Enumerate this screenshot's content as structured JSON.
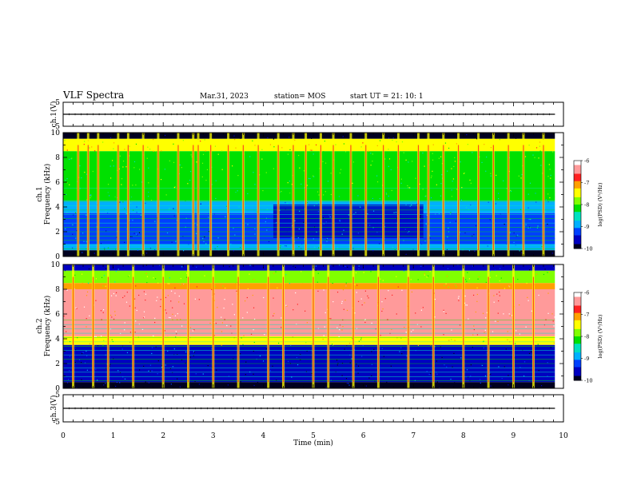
{
  "header": {
    "title": "VLF Spectra",
    "date": "Mar.31, 2023",
    "station": "station= MOS",
    "start": "start UT =   21: 10: 1"
  },
  "colorbar": {
    "label": "log(PSD) (V²/Hz)",
    "ticks": [
      "-6",
      "-7",
      "-8",
      "-9",
      "-10"
    ],
    "colors": [
      "#ffffff",
      "#ff9a9a",
      "#ff2020",
      "#ffa000",
      "#ffff00",
      "#80ff00",
      "#00e000",
      "#00e0c0",
      "#00b0ff",
      "#0040ff",
      "#0000c0",
      "#000020"
    ]
  },
  "chart_data": [
    {
      "type": "line",
      "panel": "ch1-waveform",
      "ylabel": "ch.1(V)",
      "ylim": [
        -5,
        5
      ],
      "ytick_labels": [
        "5",
        "-5"
      ],
      "x": [
        0,
        1,
        2,
        3,
        4,
        5,
        6,
        7,
        8,
        9,
        9.83
      ],
      "y": [
        0,
        0,
        0,
        0,
        0,
        0,
        0,
        0,
        0,
        0,
        0
      ]
    },
    {
      "type": "heatmap",
      "panel": "ch1-spectrogram",
      "ylabel": "ch.1 Frequency (kHz)",
      "ylim": [
        0,
        10
      ],
      "ytick_labels": [
        "0",
        "2",
        "4",
        "6",
        "8",
        "10"
      ],
      "bands": [
        {
          "from_khz": 9.5,
          "to_khz": 10,
          "level": -10
        },
        {
          "from_khz": 8.5,
          "to_khz": 9.5,
          "level": -7.5
        },
        {
          "from_khz": 5.5,
          "to_khz": 8.5,
          "level": -8
        },
        {
          "from_khz": 4.5,
          "to_khz": 5.5,
          "level": -8.3
        },
        {
          "from_khz": 3.5,
          "to_khz": 4.5,
          "level": -8.8
        },
        {
          "from_khz": 1.0,
          "to_khz": 3.5,
          "level": -9.2
        },
        {
          "from_khz": 0.5,
          "to_khz": 1.0,
          "level": -8.8
        },
        {
          "from_khz": 0,
          "to_khz": 0.5,
          "level": -10
        }
      ],
      "low_power_region": {
        "from_min": 4.2,
        "to_min": 7.2,
        "from_khz": 1.5,
        "to_khz": 4.2,
        "level": -9.8
      },
      "bursts_min": [
        0.3,
        0.5,
        0.7,
        1.1,
        1.3,
        1.6,
        1.9,
        2.3,
        2.6,
        2.7,
        2.95,
        3.3,
        3.6,
        3.9,
        4.3,
        4.6,
        4.85,
        5.15,
        5.4,
        5.75,
        6.05,
        6.4,
        6.7,
        7.1,
        7.3,
        7.6,
        7.9,
        8.3,
        8.6,
        8.9,
        9.2,
        9.6
      ]
    },
    {
      "type": "heatmap",
      "panel": "ch2-spectrogram",
      "ylabel": "ch.2 Frequency (kHz)",
      "ylim": [
        0,
        10
      ],
      "ytick_labels": [
        "0",
        "2",
        "4",
        "6",
        "8",
        "10"
      ],
      "bands": [
        {
          "from_khz": 9.5,
          "to_khz": 10,
          "level": -9.5
        },
        {
          "from_khz": 8.5,
          "to_khz": 9.5,
          "level": -7.8
        },
        {
          "from_khz": 8.0,
          "to_khz": 8.5,
          "level": -7.2
        },
        {
          "from_khz": 4.2,
          "to_khz": 8.0,
          "level": -6.4
        },
        {
          "from_khz": 3.5,
          "to_khz": 4.2,
          "level": -7.6
        },
        {
          "from_khz": 0.5,
          "to_khz": 3.5,
          "level": -9.6
        },
        {
          "from_khz": 0,
          "to_khz": 0.5,
          "level": -10
        }
      ],
      "bursts_min": [
        0.2,
        0.6,
        0.9,
        1.4,
        2.0,
        2.5,
        3.0,
        3.5,
        4.1,
        4.4,
        5.0,
        5.3,
        5.8,
        6.3,
        6.9,
        7.4,
        8.0,
        8.5,
        9.0,
        9.4
      ]
    },
    {
      "type": "line",
      "panel": "ch3-waveform",
      "ylabel": "ch.3(V)",
      "ylim": [
        -5,
        5
      ],
      "ytick_labels": [
        "5",
        "-5"
      ],
      "x": [
        0,
        1,
        2,
        3,
        4,
        5,
        6,
        7,
        8,
        9,
        9.83
      ],
      "y": [
        0,
        0,
        0,
        0,
        0,
        0,
        0,
        0,
        0,
        0,
        0
      ]
    }
  ],
  "xaxis": {
    "label": "Time (min)",
    "xlim": [
      0,
      10
    ],
    "data_end": 9.83,
    "tick_labels": [
      "0",
      "1",
      "2",
      "3",
      "4",
      "5",
      "6",
      "7",
      "8",
      "9",
      "10"
    ]
  }
}
